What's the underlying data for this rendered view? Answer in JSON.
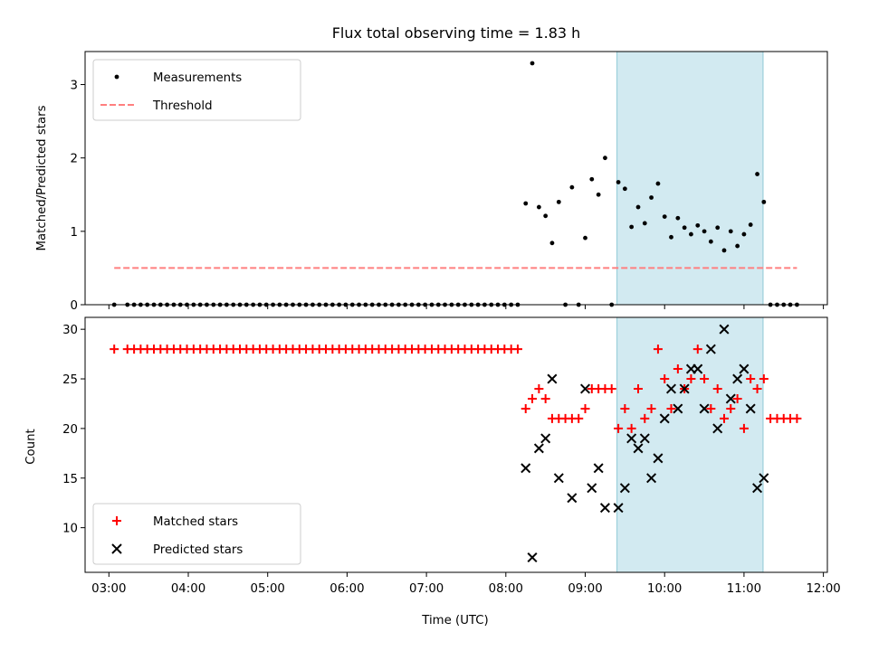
{
  "chart_data": [
    {
      "panel": "top",
      "type": "scatter",
      "title": "Flux total observing time = 1.83 h",
      "xlabel": "",
      "ylabel": "Matched/Predicted stars",
      "ylim": [
        0,
        3.45
      ],
      "yticks": [
        0,
        1,
        2,
        3
      ],
      "xlim": [
        2.7,
        12.05
      ],
      "highlight_span": {
        "x": [
          9.4,
          11.24
        ],
        "color": "#add8e6"
      },
      "legend_position": "upper-left",
      "series": [
        {
          "name": "Measurements",
          "marker": "dot",
          "color": "#000000",
          "x": [
            3.067,
            3.233,
            3.317,
            3.4,
            3.483,
            3.567,
            3.65,
            3.733,
            3.817,
            3.9,
            3.983,
            4.067,
            4.15,
            4.233,
            4.317,
            4.4,
            4.483,
            4.567,
            4.65,
            4.733,
            4.817,
            4.9,
            4.983,
            5.067,
            5.15,
            5.233,
            5.317,
            5.4,
            5.483,
            5.567,
            5.65,
            5.733,
            5.817,
            5.9,
            5.983,
            6.067,
            6.15,
            6.233,
            6.317,
            6.4,
            6.483,
            6.567,
            6.65,
            6.733,
            6.817,
            6.9,
            6.983,
            7.067,
            7.15,
            7.233,
            7.317,
            7.4,
            7.483,
            7.567,
            7.65,
            7.733,
            7.817,
            7.9,
            7.983,
            8.067,
            8.15,
            8.25,
            8.333,
            8.417,
            8.5,
            8.583,
            8.667,
            8.75,
            8.833,
            8.917,
            9.0,
            9.083,
            9.167,
            9.25,
            9.333,
            9.417,
            9.5,
            9.583,
            9.667,
            9.75,
            9.833,
            9.917,
            10.0,
            10.083,
            10.167,
            10.25,
            10.333,
            10.417,
            10.5,
            10.583,
            10.667,
            10.75,
            10.833,
            10.917,
            11.0,
            11.083,
            11.167,
            11.25,
            11.333,
            11.417,
            11.5,
            11.583,
            11.667
          ],
          "y": [
            0,
            0,
            0,
            0,
            0,
            0,
            0,
            0,
            0,
            0,
            0,
            0,
            0,
            0,
            0,
            0,
            0,
            0,
            0,
            0,
            0,
            0,
            0,
            0,
            0,
            0,
            0,
            0,
            0,
            0,
            0,
            0,
            0,
            0,
            0,
            0,
            0,
            0,
            0,
            0,
            0,
            0,
            0,
            0,
            0,
            0,
            0,
            0,
            0,
            0,
            0,
            0,
            0,
            0,
            0,
            0,
            0,
            0,
            0,
            0,
            0,
            1.38,
            3.29,
            1.33,
            1.21,
            0.84,
            1.4,
            0,
            1.6,
            0,
            0.91,
            1.71,
            1.5,
            2.0,
            0,
            1.67,
            1.58,
            1.06,
            1.33,
            1.11,
            1.46,
            1.65,
            1.2,
            0.92,
            1.18,
            1.05,
            0.96,
            1.08,
            1.0,
            0.86,
            1.05,
            0.74,
            1.0,
            0.8,
            0.96,
            1.09,
            1.78,
            1.4,
            0,
            0,
            0,
            0,
            0
          ]
        },
        {
          "name": "Threshold",
          "marker": "dashed-line",
          "color": "#ff7f7f",
          "x": [
            3.067,
            11.667
          ],
          "y": [
            0.5,
            0.5
          ]
        }
      ]
    },
    {
      "panel": "bottom",
      "type": "scatter",
      "title": "",
      "xlabel": "Time (UTC)",
      "ylabel": "Count",
      "ylim": [
        5.5,
        31.2
      ],
      "yticks": [
        10,
        15,
        20,
        25,
        30
      ],
      "xlim": [
        2.7,
        12.05
      ],
      "xticks": [
        3,
        4,
        5,
        6,
        7,
        8,
        9,
        10,
        11,
        12
      ],
      "xtick_labels": [
        "03:00",
        "04:00",
        "05:00",
        "06:00",
        "07:00",
        "08:00",
        "09:00",
        "10:00",
        "11:00",
        "12:00"
      ],
      "highlight_span": {
        "x": [
          9.4,
          11.24
        ],
        "color": "#add8e6"
      },
      "legend_position": "lower-left",
      "series": [
        {
          "name": "Matched stars",
          "marker": "plus",
          "color": "#ff0000",
          "x": [
            3.067,
            3.233,
            3.317,
            3.4,
            3.483,
            3.567,
            3.65,
            3.733,
            3.817,
            3.9,
            3.983,
            4.067,
            4.15,
            4.233,
            4.317,
            4.4,
            4.483,
            4.567,
            4.65,
            4.733,
            4.817,
            4.9,
            4.983,
            5.067,
            5.15,
            5.233,
            5.317,
            5.4,
            5.483,
            5.567,
            5.65,
            5.733,
            5.817,
            5.9,
            5.983,
            6.067,
            6.15,
            6.233,
            6.317,
            6.4,
            6.483,
            6.567,
            6.65,
            6.733,
            6.817,
            6.9,
            6.983,
            7.067,
            7.15,
            7.233,
            7.317,
            7.4,
            7.483,
            7.567,
            7.65,
            7.733,
            7.817,
            7.9,
            7.983,
            8.067,
            8.15,
            8.25,
            8.333,
            8.417,
            8.5,
            8.583,
            8.667,
            8.75,
            8.833,
            8.917,
            9.0,
            9.083,
            9.167,
            9.25,
            9.333,
            9.417,
            9.5,
            9.583,
            9.667,
            9.75,
            9.833,
            9.917,
            10.0,
            10.083,
            10.167,
            10.25,
            10.333,
            10.417,
            10.5,
            10.583,
            10.667,
            10.75,
            10.833,
            10.917,
            11.0,
            11.083,
            11.167,
            11.25,
            11.333,
            11.417,
            11.5,
            11.583,
            11.667
          ],
          "y": [
            28,
            28,
            28,
            28,
            28,
            28,
            28,
            28,
            28,
            28,
            28,
            28,
            28,
            28,
            28,
            28,
            28,
            28,
            28,
            28,
            28,
            28,
            28,
            28,
            28,
            28,
            28,
            28,
            28,
            28,
            28,
            28,
            28,
            28,
            28,
            28,
            28,
            28,
            28,
            28,
            28,
            28,
            28,
            28,
            28,
            28,
            28,
            28,
            28,
            28,
            28,
            28,
            28,
            28,
            28,
            28,
            28,
            28,
            28,
            28,
            28,
            22,
            23,
            24,
            23,
            21,
            21,
            21,
            21,
            21,
            22,
            24,
            24,
            24,
            24,
            20,
            22,
            20,
            24,
            21,
            22,
            28,
            25,
            22,
            26,
            24,
            25,
            28,
            25,
            22,
            24,
            21,
            22,
            23,
            20,
            25,
            24,
            25,
            21,
            21,
            21,
            21,
            21
          ]
        },
        {
          "name": "Predicted stars",
          "marker": "x",
          "color": "#000000",
          "x": [
            8.25,
            8.333,
            8.417,
            8.5,
            8.583,
            8.667,
            8.833,
            9.0,
            9.083,
            9.167,
            9.25,
            9.417,
            9.5,
            9.583,
            9.667,
            9.75,
            9.833,
            9.917,
            10.0,
            10.083,
            10.167,
            10.25,
            10.333,
            10.417,
            10.5,
            10.583,
            10.667,
            10.75,
            10.833,
            10.917,
            11.0,
            11.083,
            11.167,
            11.25
          ],
          "y": [
            16,
            7,
            18,
            19,
            25,
            15,
            13,
            24,
            14,
            16,
            12,
            12,
            14,
            19,
            18,
            19,
            15,
            17,
            21,
            24,
            22,
            24,
            26,
            26,
            22,
            28,
            20,
            30,
            23,
            25,
            26,
            22,
            14,
            15
          ]
        }
      ]
    }
  ]
}
